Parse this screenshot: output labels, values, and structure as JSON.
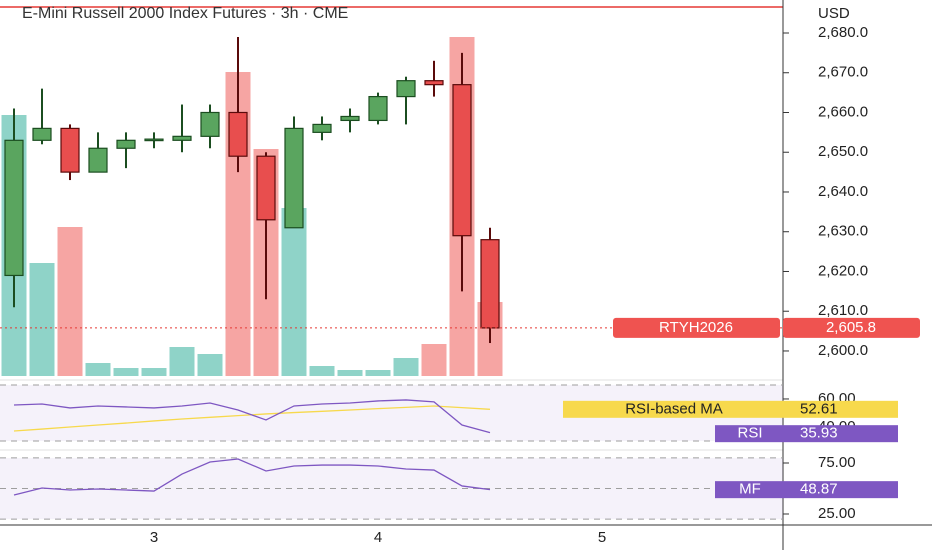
{
  "chart_data": {
    "type": "candlestick",
    "title": "E-Mini Russell 2000 Index Futures · 3h · CME",
    "currency": "USD",
    "categories": [
      null,
      null,
      null,
      null,
      null,
      "3",
      null,
      null,
      null,
      null,
      null,
      null,
      null,
      "4",
      null,
      null,
      null,
      null,
      null,
      null,
      null,
      "5"
    ],
    "open": [
      2619,
      2653,
      2656,
      2645,
      2651,
      2653,
      2653,
      2654,
      2660,
      2649,
      2631,
      2655,
      2658,
      2658,
      2664,
      2668,
      2667,
      2628,
      null,
      null,
      null,
      null
    ],
    "high": [
      2661,
      2666,
      2657,
      2655,
      2655,
      2655,
      2662,
      2662,
      2679,
      2650,
      2659,
      2659,
      2661,
      2665,
      2669,
      2673,
      2675,
      2631,
      null,
      null,
      null,
      null
    ],
    "low": [
      2611,
      2652,
      2643,
      2645,
      2646,
      2651,
      2650,
      2651,
      2645,
      2613,
      2631,
      2653,
      2655,
      2657,
      2657,
      2664,
      2615,
      2602,
      null,
      null,
      null,
      null
    ],
    "close": [
      2653,
      2656,
      2645,
      2651,
      2653,
      2653.3,
      2654,
      2660,
      2649,
      2633,
      2656,
      2657,
      2659,
      2664,
      2668,
      2667,
      2629,
      2605.8,
      null,
      null,
      null,
      null
    ],
    "volume": [
      261,
      113,
      149,
      13,
      8,
      8,
      29,
      22,
      304,
      227,
      168,
      10,
      6,
      6,
      18,
      32,
      339,
      74,
      null,
      null,
      null,
      null
    ],
    "up_color": "#5aa55f",
    "down_color": "#e84e4e",
    "up_volume_color": "#8fd3c8",
    "down_volume_color": "#f6a5a3",
    "ylim": [
      2593.2,
      2688.3
    ],
    "yticks": [
      {
        "value": 2600,
        "label": "2,600.0"
      },
      {
        "value": 2610,
        "label": "2,610.0"
      },
      {
        "value": 2620,
        "label": "2,620.0"
      },
      {
        "value": 2630,
        "label": "2,630.0"
      },
      {
        "value": 2640,
        "label": "2,640.0"
      },
      {
        "value": 2650,
        "label": "2,650.0"
      },
      {
        "value": 2660,
        "label": "2,660.0"
      },
      {
        "value": 2670,
        "label": "2,670.0"
      },
      {
        "value": 2680,
        "label": "2,680.0"
      }
    ],
    "last_price_tag": {
      "symbol": "RTYH2026",
      "label": "2,605.8"
    },
    "rsi": {
      "name": "RSI",
      "ma_name": "RSI-based MA",
      "color": "#7e57c2",
      "ma_color": "#f7d94c",
      "values": [
        55.7,
        56.4,
        53.6,
        55,
        54.3,
        53.6,
        55,
        57.1,
        52.1,
        45,
        55,
        56.4,
        57.1,
        58.6,
        59.3,
        57.9,
        41.4,
        35.93,
        null,
        null,
        null,
        null
      ],
      "ma_values": [
        37.1,
        38.5,
        40,
        41.4,
        42.8,
        44.3,
        45.7,
        46.9,
        48.1,
        49.3,
        50.3,
        51.2,
        52.1,
        53.1,
        54,
        55,
        53.8,
        52.61,
        null,
        null,
        null,
        null
      ],
      "ylim": [
        25.7,
        71.4
      ],
      "yticks": [
        {
          "value": 60,
          "label": "60.00"
        },
        {
          "value": 40,
          "label": "40.00"
        }
      ],
      "band": [
        30,
        70
      ]
    },
    "mfi": {
      "name": "MF",
      "color": "#7e57c2",
      "values": [
        43.6,
        50.5,
        48.5,
        49.5,
        48.5,
        47.5,
        64.2,
        76,
        78.9,
        67.2,
        72.1,
        73,
        73,
        72.1,
        69.1,
        68.1,
        52.5,
        48.87,
        null,
        null,
        null,
        null
      ],
      "ylim": [
        19.1,
        85.8
      ],
      "yticks": [
        {
          "value": 75,
          "label": "75.00"
        },
        {
          "value": 25,
          "label": "25.00"
        }
      ],
      "band": [
        20,
        80
      ],
      "levels": [
        80,
        50,
        20
      ]
    }
  }
}
